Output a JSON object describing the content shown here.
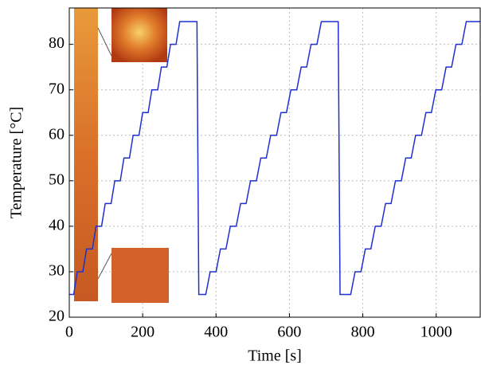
{
  "chart_data": {
    "type": "line",
    "xlabel": "Time [s]",
    "ylabel": "Temperature [°C]",
    "x": [
      0,
      12,
      22,
      37,
      47,
      63,
      73,
      88,
      98,
      114,
      124,
      139,
      149,
      164,
      174,
      190,
      200,
      215,
      225,
      241,
      251,
      266,
      276,
      291,
      301,
      348,
      353,
      372,
      384,
      400,
      412,
      427,
      439,
      455,
      467,
      482,
      494,
      510,
      522,
      537,
      549,
      565,
      577,
      592,
      604,
      620,
      632,
      647,
      659,
      675,
      687,
      733,
      738,
      767,
      779,
      795,
      807,
      822,
      834,
      850,
      862,
      877,
      889,
      905,
      917,
      932,
      944,
      960,
      972,
      987,
      999,
      1015,
      1027,
      1042,
      1054,
      1070,
      1082,
      1120
    ],
    "values": [
      25,
      25,
      30,
      30,
      35,
      35,
      40,
      40,
      45,
      45,
      50,
      50,
      55,
      55,
      60,
      60,
      65,
      65,
      70,
      70,
      75,
      75,
      80,
      80,
      85,
      85,
      25,
      25,
      30,
      30,
      35,
      35,
      40,
      40,
      45,
      45,
      50,
      50,
      55,
      55,
      60,
      60,
      65,
      65,
      70,
      70,
      75,
      75,
      80,
      80,
      85,
      85,
      25,
      25,
      30,
      30,
      35,
      35,
      40,
      40,
      45,
      45,
      50,
      50,
      55,
      55,
      60,
      60,
      65,
      65,
      70,
      70,
      75,
      75,
      80,
      80,
      85,
      85
    ],
    "color": "#1f2fd0",
    "xlim": [
      0,
      1120
    ],
    "ylim": [
      20,
      88
    ],
    "xticks": [
      0,
      200,
      400,
      600,
      800,
      1000
    ],
    "yticks": [
      20,
      30,
      40,
      50,
      60,
      70,
      80
    ],
    "grid": true
  }
}
